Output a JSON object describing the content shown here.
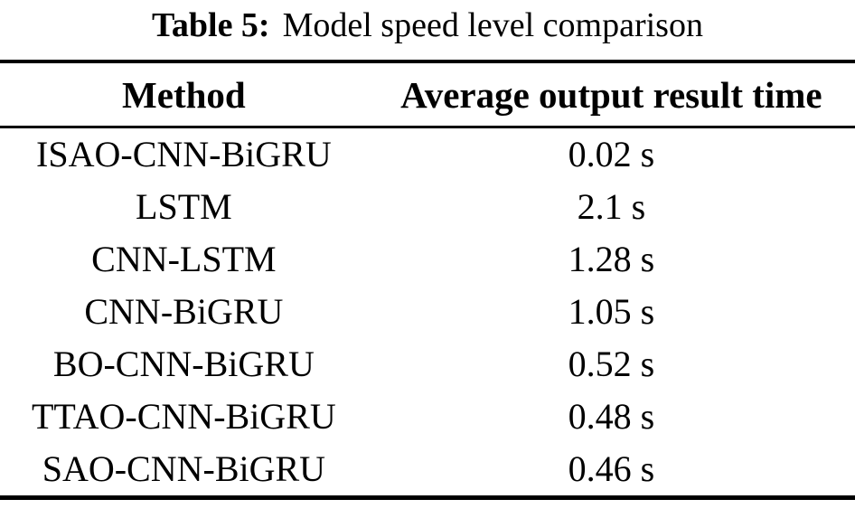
{
  "caption": {
    "label": "Table 5:",
    "text": "Model speed level comparison"
  },
  "table": {
    "columns": [
      "Method",
      "Average output result time"
    ],
    "rows": [
      {
        "method": "ISAO-CNN-BiGRU",
        "time": "0.02 s"
      },
      {
        "method": "LSTM",
        "time": "2.1 s"
      },
      {
        "method": "CNN-LSTM",
        "time": "1.28 s"
      },
      {
        "method": "CNN-BiGRU",
        "time": "1.05 s"
      },
      {
        "method": "BO-CNN-BiGRU",
        "time": "0.52 s"
      },
      {
        "method": "TTAO-CNN-BiGRU",
        "time": "0.48 s"
      },
      {
        "method": "SAO-CNN-BiGRU",
        "time": "0.46 s"
      }
    ]
  },
  "colors": {
    "text": "#000000",
    "background": "#ffffff",
    "rule": "#000000"
  }
}
